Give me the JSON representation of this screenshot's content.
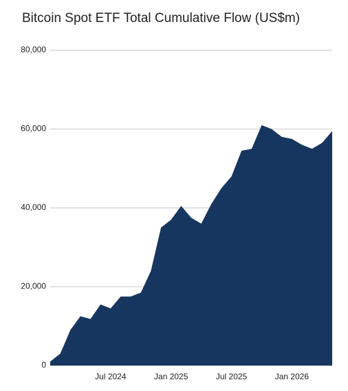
{
  "chart_data": {
    "type": "area",
    "title": "Bitcoin Spot ETF Total Cumulative Flow (US$m)",
    "x": [
      "2024-01",
      "2024-02",
      "2024-03",
      "2024-04",
      "2024-05",
      "2024-06",
      "2024-07",
      "2024-08",
      "2024-09",
      "2024-10",
      "2024-11",
      "2024-12",
      "2025-01",
      "2025-02",
      "2025-03",
      "2025-04",
      "2025-05",
      "2025-06",
      "2025-07",
      "2025-08",
      "2025-09",
      "2025-10",
      "2025-11",
      "2025-12",
      "2026-01",
      "2026-02",
      "2026-03",
      "2026-04",
      "2026-05"
    ],
    "values": [
      1000,
      3000,
      9000,
      12500,
      11800,
      15500,
      14500,
      17500,
      17500,
      18500,
      24000,
      35000,
      37000,
      40500,
      37500,
      36000,
      41000,
      45000,
      48000,
      54500,
      55000,
      61000,
      60000,
      58000,
      57500,
      56000,
      55000,
      56500,
      59500
    ],
    "color": "#17365f",
    "xlim": [
      "2024-01",
      "2026-05"
    ],
    "xticks": [
      {
        "value": "2024-07",
        "label": "Jul 2024"
      },
      {
        "value": "2025-01",
        "label": "Jan 2025"
      },
      {
        "value": "2025-07",
        "label": "Jul 2025"
      },
      {
        "value": "2026-01",
        "label": "Jan 2026"
      }
    ],
    "ylim": [
      0,
      80000
    ],
    "yticks": [
      0,
      {
        "value": 20000,
        "label": "20,000"
      },
      {
        "value": 40000,
        "label": "40,000"
      },
      {
        "value": 60000,
        "label": "60,000"
      },
      {
        "value": 80000,
        "label": "80,000"
      }
    ],
    "grid": true
  }
}
